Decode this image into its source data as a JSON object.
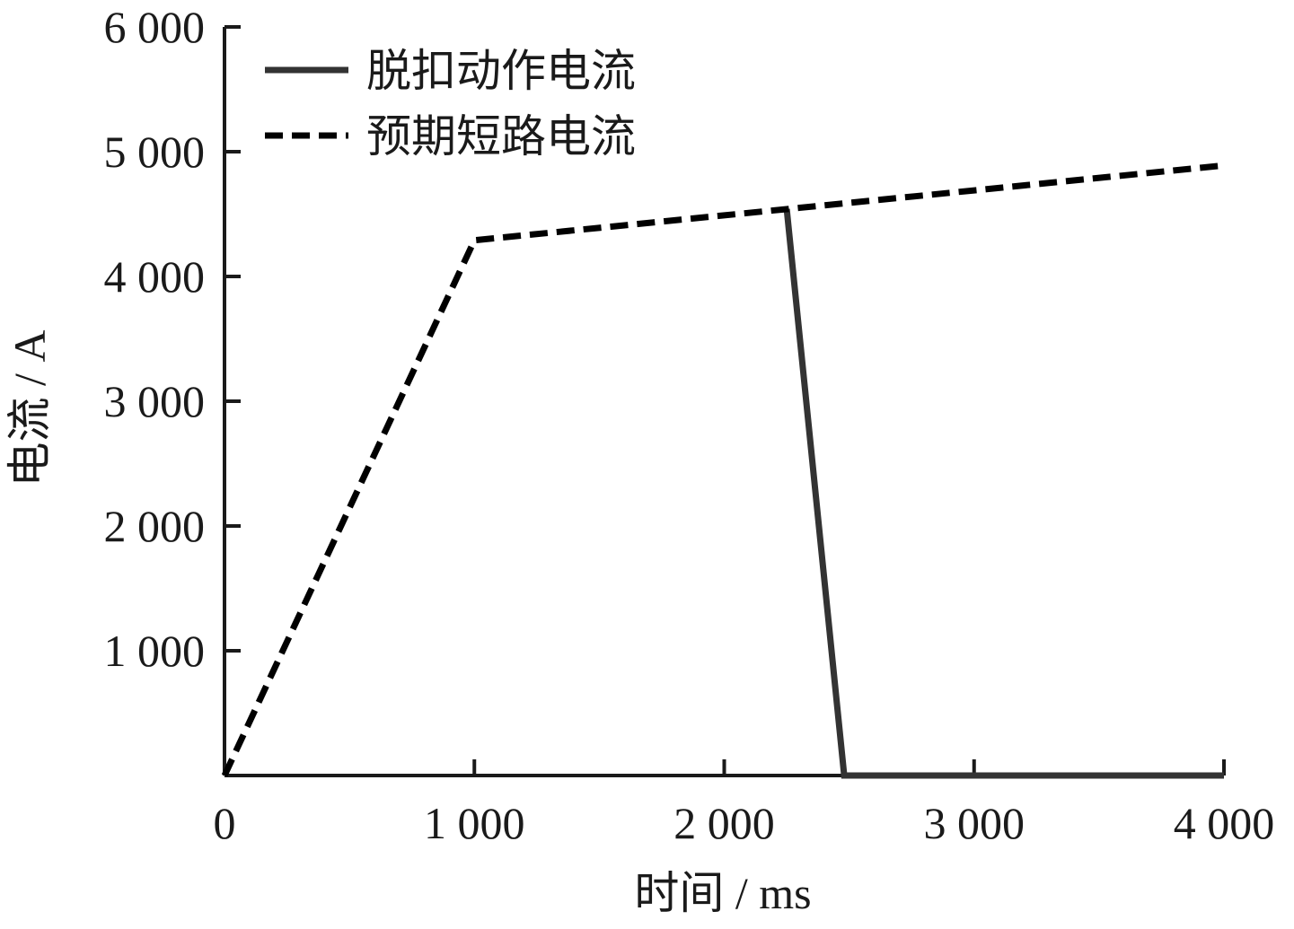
{
  "chart_data": {
    "type": "line",
    "title": "",
    "xlabel": "时间 / ms",
    "ylabel": "电流 / A",
    "xlim": [
      0,
      4000
    ],
    "ylim": [
      0,
      6000
    ],
    "x_ticks": [
      0,
      1000,
      2000,
      3000,
      4000
    ],
    "x_tick_labels": [
      "0",
      "1 000",
      "2 000",
      "3 000",
      "4 000"
    ],
    "y_ticks": [
      1000,
      2000,
      3000,
      4000,
      5000,
      6000
    ],
    "y_tick_labels": [
      "1 000",
      "2 000",
      "3 000",
      "4 000",
      "5 000",
      "6 000"
    ],
    "grid": false,
    "legend_position": "top-left",
    "series": [
      {
        "name": "脱扣动作电流",
        "style": "solid",
        "color": "#333333",
        "points": [
          [
            2250,
            4540
          ],
          [
            2480,
            0
          ],
          [
            4000,
            0
          ]
        ]
      },
      {
        "name": "预期短路电流",
        "style": "dashed",
        "color": "#000000",
        "points": [
          [
            0,
            0
          ],
          [
            1000,
            4290
          ],
          [
            4000,
            4890
          ]
        ]
      }
    ]
  }
}
